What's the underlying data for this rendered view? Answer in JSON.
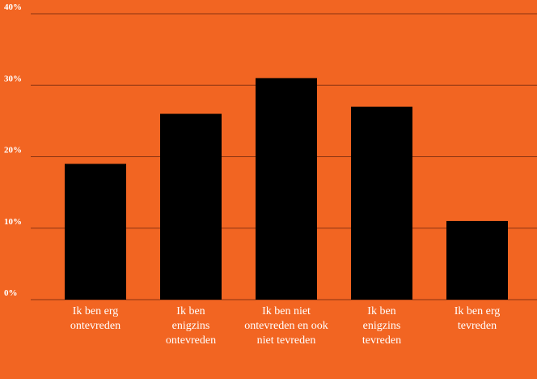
{
  "chart_data": {
    "type": "bar",
    "categories": [
      "Ik ben erg ontevreden",
      "Ik ben enigzins ontevreden",
      "Ik ben niet ontevreden en ook niet tevreden",
      "Ik ben enigzins tevreden",
      "Ik ben erg tevreden"
    ],
    "values": [
      19,
      26,
      31,
      27,
      11
    ],
    "color": "#000000",
    "ylim": [
      0,
      40
    ],
    "yticks": [
      {
        "value": 0,
        "label": "0%"
      },
      {
        "value": 10,
        "label": "10%"
      },
      {
        "value": 20,
        "label": "20%"
      },
      {
        "value": 30,
        "label": "30%"
      },
      {
        "value": 40,
        "label": "40%"
      }
    ],
    "grid": true
  }
}
